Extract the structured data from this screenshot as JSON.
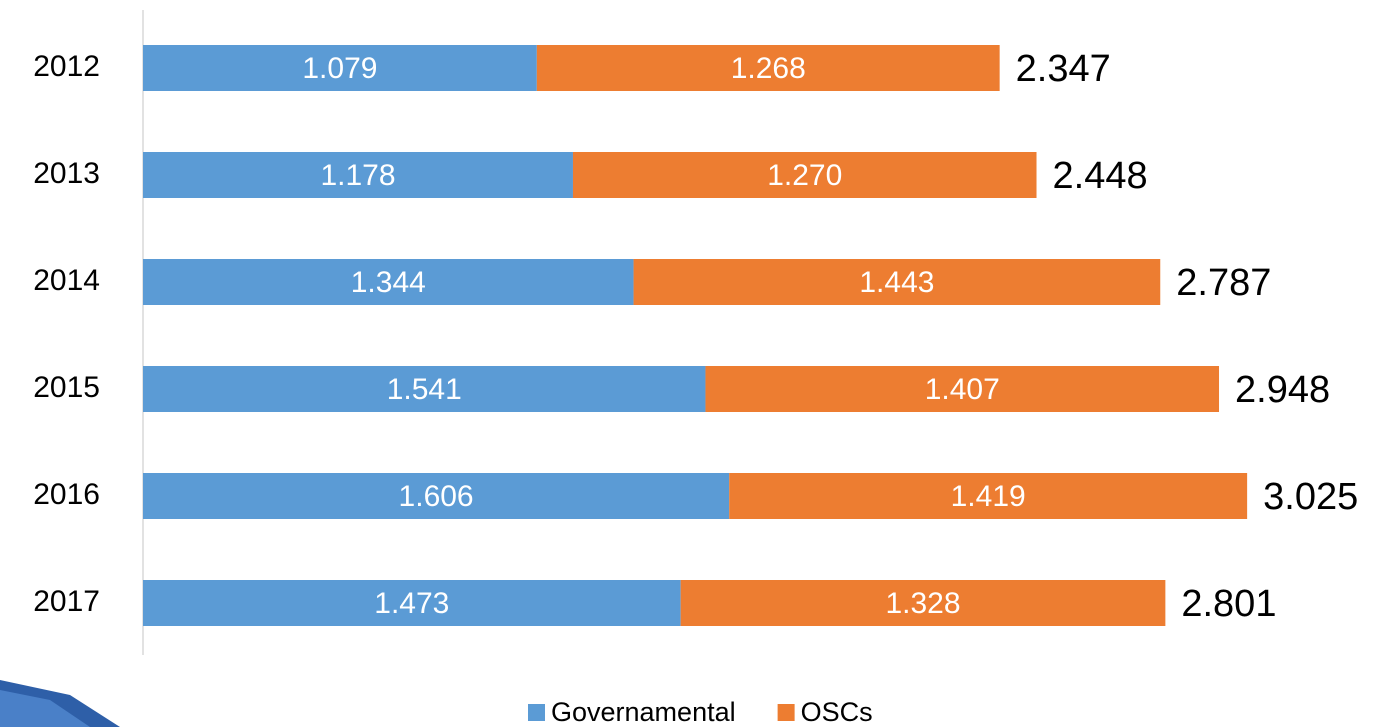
{
  "chart_data": {
    "type": "stacked-bar-horizontal",
    "categories": [
      "2012",
      "2013",
      "2014",
      "2015",
      "2016",
      "2017"
    ],
    "series": [
      {
        "name": "Governamental",
        "color": "#5b9bd5",
        "values": [
          1.079,
          1.178,
          1.344,
          1.541,
          1.606,
          1.473
        ],
        "value_labels": [
          "1.079",
          "1.178",
          "1.344",
          "1.541",
          "1.606",
          "1.473"
        ]
      },
      {
        "name": "OSCs",
        "color": "#ed7d31",
        "values": [
          1.268,
          1.27,
          1.443,
          1.407,
          1.419,
          1.328
        ],
        "value_labels": [
          "1.268",
          "1.270",
          "1.443",
          "1.407",
          "1.419",
          "1.328"
        ]
      }
    ],
    "totals": [
      2.347,
      2.448,
      2.787,
      2.948,
      3.025,
      2.801
    ],
    "total_labels": [
      "2.347",
      "2.448",
      "2.787",
      "2.948",
      "3.025",
      "2.801"
    ],
    "legend": "bottom"
  }
}
